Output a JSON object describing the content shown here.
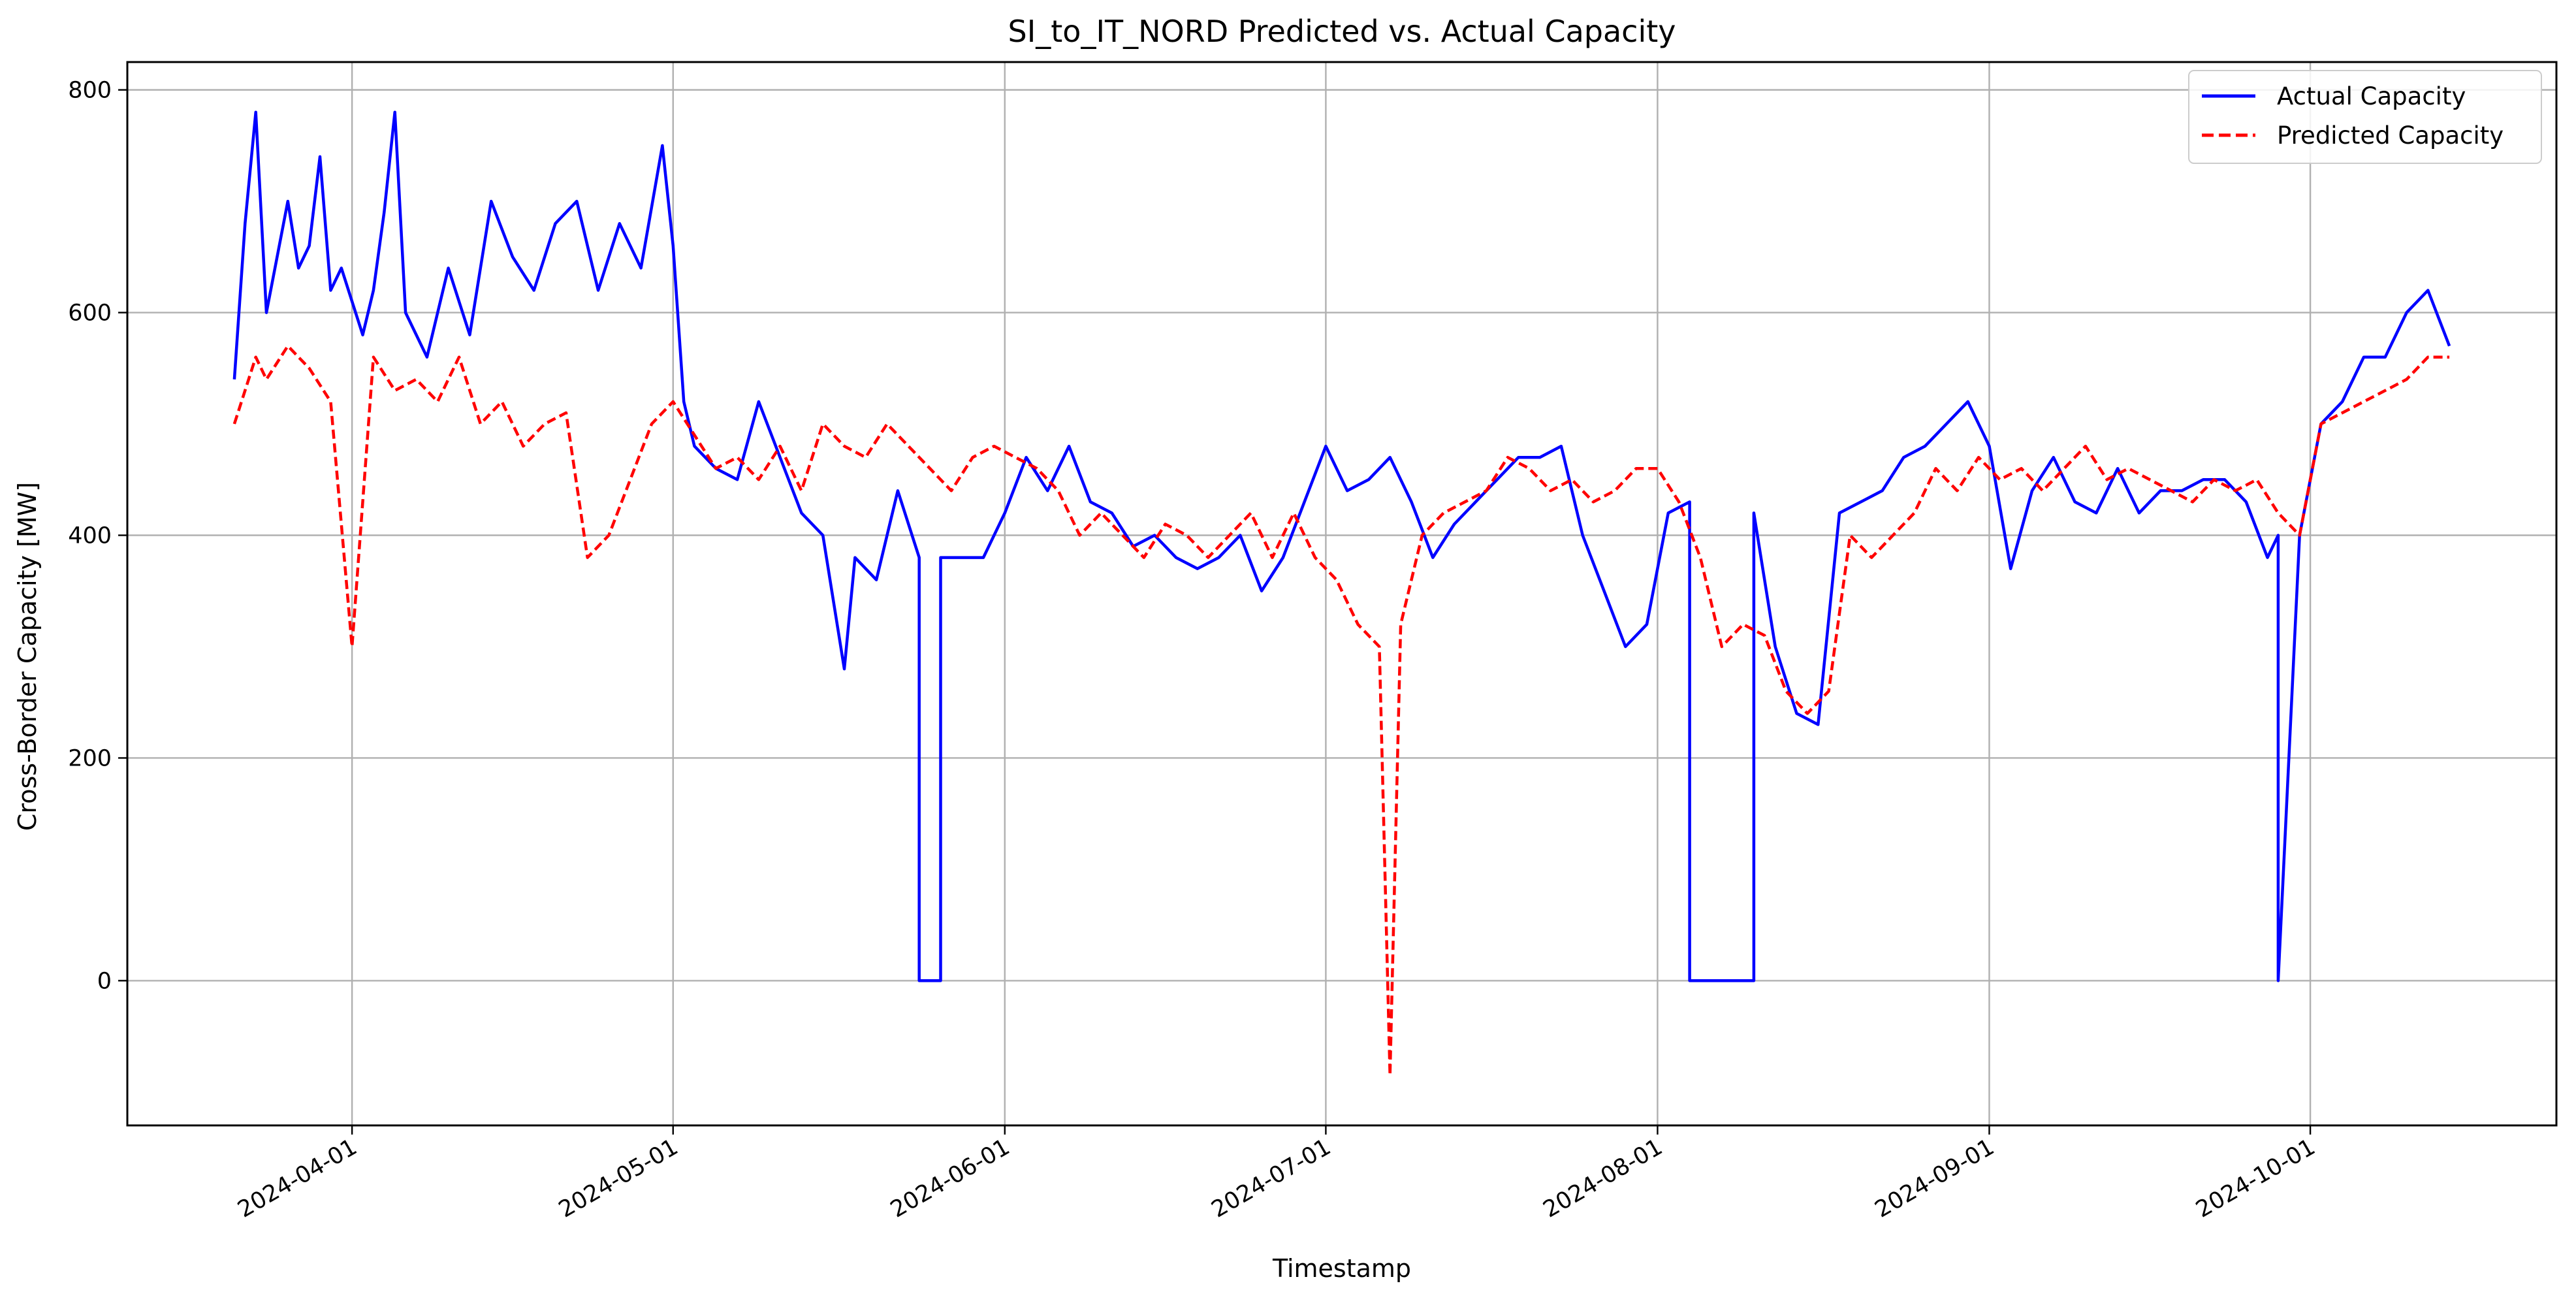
{
  "chart_data": {
    "type": "line",
    "title": "SI_to_IT_NORD Predicted vs. Actual Capacity",
    "xlabel": "Timestamp",
    "ylabel": "Cross-Border Capacity [MW]",
    "x_type": "date",
    "xlim": [
      "2024-03-11",
      "2024-10-24"
    ],
    "ylim": [
      -130,
      825
    ],
    "x_ticks": [
      "2024-04-01",
      "2024-05-01",
      "2024-06-01",
      "2024-07-01",
      "2024-08-01",
      "2024-09-01",
      "2024-10-01"
    ],
    "y_ticks": [
      0,
      200,
      400,
      600,
      800
    ],
    "grid": true,
    "legend_position": "top-right",
    "series": [
      {
        "name": "Actual Capacity",
        "color": "#0000ff",
        "style": "solid",
        "x": [
          "2024-03-21",
          "2024-03-22",
          "2024-03-23",
          "2024-03-24",
          "2024-03-25",
          "2024-03-26",
          "2024-03-27",
          "2024-03-28",
          "2024-03-29",
          "2024-03-30",
          "2024-03-31",
          "2024-04-02",
          "2024-04-03",
          "2024-04-04",
          "2024-04-05",
          "2024-04-06",
          "2024-04-08",
          "2024-04-10",
          "2024-04-12",
          "2024-04-14",
          "2024-04-16",
          "2024-04-18",
          "2024-04-20",
          "2024-04-22",
          "2024-04-24",
          "2024-04-26",
          "2024-04-28",
          "2024-04-30",
          "2024-05-01",
          "2024-05-02",
          "2024-05-03",
          "2024-05-05",
          "2024-05-07",
          "2024-05-09",
          "2024-05-11",
          "2024-05-13",
          "2024-05-15",
          "2024-05-17",
          "2024-05-18",
          "2024-05-20",
          "2024-05-22",
          "2024-05-24",
          "2024-05-24",
          "2024-05-26",
          "2024-05-26",
          "2024-05-28",
          "2024-05-30",
          "2024-06-01",
          "2024-06-03",
          "2024-06-05",
          "2024-06-07",
          "2024-06-09",
          "2024-06-11",
          "2024-06-13",
          "2024-06-15",
          "2024-06-17",
          "2024-06-19",
          "2024-06-21",
          "2024-06-23",
          "2024-06-25",
          "2024-06-27",
          "2024-06-29",
          "2024-07-01",
          "2024-07-03",
          "2024-07-05",
          "2024-07-07",
          "2024-07-09",
          "2024-07-11",
          "2024-07-13",
          "2024-07-15",
          "2024-07-17",
          "2024-07-19",
          "2024-07-21",
          "2024-07-23",
          "2024-07-25",
          "2024-07-27",
          "2024-07-29",
          "2024-07-31",
          "2024-08-02",
          "2024-08-04",
          "2024-08-04",
          "2024-08-10",
          "2024-08-10",
          "2024-08-12",
          "2024-08-14",
          "2024-08-16",
          "2024-08-18",
          "2024-08-20",
          "2024-08-22",
          "2024-08-24",
          "2024-08-26",
          "2024-08-28",
          "2024-08-30",
          "2024-09-01",
          "2024-09-03",
          "2024-09-05",
          "2024-09-07",
          "2024-09-09",
          "2024-09-11",
          "2024-09-13",
          "2024-09-15",
          "2024-09-17",
          "2024-09-19",
          "2024-09-21",
          "2024-09-23",
          "2024-09-25",
          "2024-09-27",
          "2024-09-28",
          "2024-09-28",
          "2024-09-30",
          "2024-10-02",
          "2024-10-04",
          "2024-10-06",
          "2024-10-08",
          "2024-10-10",
          "2024-10-12",
          "2024-10-14"
        ],
        "y": [
          540,
          680,
          780,
          600,
          650,
          700,
          640,
          660,
          740,
          620,
          640,
          580,
          620,
          690,
          780,
          600,
          560,
          640,
          580,
          700,
          650,
          620,
          680,
          700,
          620,
          680,
          640,
          750,
          660,
          520,
          480,
          460,
          450,
          520,
          470,
          420,
          400,
          280,
          380,
          360,
          440,
          380,
          0,
          0,
          380,
          380,
          380,
          420,
          470,
          440,
          480,
          430,
          420,
          390,
          400,
          380,
          370,
          380,
          400,
          350,
          380,
          430,
          480,
          440,
          450,
          470,
          430,
          380,
          410,
          430,
          450,
          470,
          470,
          480,
          400,
          350,
          300,
          320,
          420,
          430,
          0,
          0,
          420,
          300,
          240,
          230,
          420,
          430,
          440,
          470,
          480,
          500,
          520,
          480,
          370,
          440,
          470,
          430,
          420,
          460,
          420,
          440,
          440,
          450,
          450,
          430,
          380,
          400,
          0,
          400,
          500,
          520,
          560,
          560,
          600,
          620,
          570
        ]
      },
      {
        "name": "Predicted Capacity",
        "color": "#ff0000",
        "style": "dashed",
        "x": [
          "2024-03-21",
          "2024-03-23",
          "2024-03-24",
          "2024-03-26",
          "2024-03-28",
          "2024-03-30",
          "2024-04-01",
          "2024-04-03",
          "2024-04-05",
          "2024-04-07",
          "2024-04-09",
          "2024-04-11",
          "2024-04-13",
          "2024-04-15",
          "2024-04-17",
          "2024-04-19",
          "2024-04-21",
          "2024-04-23",
          "2024-04-25",
          "2024-04-27",
          "2024-04-29",
          "2024-05-01",
          "2024-05-03",
          "2024-05-05",
          "2024-05-07",
          "2024-05-09",
          "2024-05-11",
          "2024-05-13",
          "2024-05-15",
          "2024-05-17",
          "2024-05-19",
          "2024-05-21",
          "2024-05-23",
          "2024-05-25",
          "2024-05-27",
          "2024-05-29",
          "2024-05-31",
          "2024-06-02",
          "2024-06-04",
          "2024-06-06",
          "2024-06-08",
          "2024-06-10",
          "2024-06-12",
          "2024-06-14",
          "2024-06-16",
          "2024-06-18",
          "2024-06-20",
          "2024-06-22",
          "2024-06-24",
          "2024-06-26",
          "2024-06-28",
          "2024-06-30",
          "2024-07-02",
          "2024-07-04",
          "2024-07-06",
          "2024-07-07",
          "2024-07-08",
          "2024-07-10",
          "2024-07-12",
          "2024-07-14",
          "2024-07-16",
          "2024-07-18",
          "2024-07-20",
          "2024-07-22",
          "2024-07-24",
          "2024-07-26",
          "2024-07-28",
          "2024-07-30",
          "2024-08-01",
          "2024-08-03",
          "2024-08-05",
          "2024-08-07",
          "2024-08-09",
          "2024-08-11",
          "2024-08-13",
          "2024-08-15",
          "2024-08-17",
          "2024-08-19",
          "2024-08-21",
          "2024-08-23",
          "2024-08-25",
          "2024-08-27",
          "2024-08-29",
          "2024-08-31",
          "2024-09-02",
          "2024-09-04",
          "2024-09-06",
          "2024-09-08",
          "2024-09-10",
          "2024-09-12",
          "2024-09-14",
          "2024-09-16",
          "2024-09-18",
          "2024-09-20",
          "2024-09-22",
          "2024-09-24",
          "2024-09-26",
          "2024-09-28",
          "2024-09-30",
          "2024-10-02",
          "2024-10-04",
          "2024-10-06",
          "2024-10-08",
          "2024-10-10",
          "2024-10-12",
          "2024-10-14"
        ],
        "y": [
          500,
          560,
          540,
          570,
          550,
          520,
          300,
          560,
          530,
          540,
          520,
          560,
          500,
          520,
          480,
          500,
          510,
          380,
          400,
          450,
          500,
          520,
          490,
          460,
          470,
          450,
          480,
          440,
          500,
          480,
          470,
          500,
          480,
          460,
          440,
          470,
          480,
          470,
          460,
          440,
          400,
          420,
          400,
          380,
          410,
          400,
          380,
          400,
          420,
          380,
          420,
          380,
          360,
          320,
          300,
          -85,
          320,
          400,
          420,
          430,
          440,
          470,
          460,
          440,
          450,
          430,
          440,
          460,
          460,
          430,
          380,
          300,
          320,
          310,
          260,
          240,
          260,
          400,
          380,
          400,
          420,
          460,
          440,
          470,
          450,
          460,
          440,
          460,
          480,
          450,
          460,
          450,
          440,
          430,
          450,
          440,
          450,
          420,
          400,
          500,
          510,
          520,
          530,
          540,
          560,
          560
        ]
      }
    ]
  }
}
